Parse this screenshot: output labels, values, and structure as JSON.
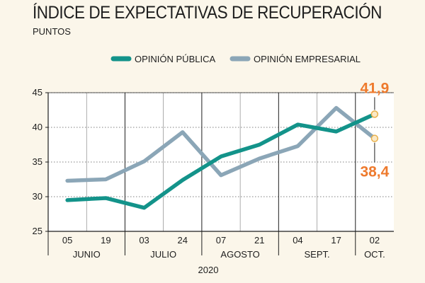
{
  "title": "ÍNDICE DE EXPECTATIVAS DE RECUPERACIÓN",
  "subtitle": "PUNTOS",
  "chart_data": {
    "type": "line",
    "x": [
      "05",
      "19",
      "03",
      "24",
      "07",
      "21",
      "04",
      "17",
      "02"
    ],
    "month_groups": [
      {
        "label": "JUNIO",
        "from": 0,
        "to": 1
      },
      {
        "label": "JULIO",
        "from": 2,
        "to": 3
      },
      {
        "label": "AGOSTO",
        "from": 4,
        "to": 5
      },
      {
        "label": "SEPT.",
        "from": 6,
        "to": 7
      },
      {
        "label": "OCT.",
        "from": 8,
        "to": 8
      }
    ],
    "year_label": "2020",
    "ylim": [
      25,
      45
    ],
    "yticks": [
      25,
      30,
      35,
      40,
      45
    ],
    "grid": true,
    "legend_position": "top",
    "series": [
      {
        "name": "OPINIÓN PÚBLICA",
        "color": "#13938a",
        "values": [
          29.5,
          29.8,
          28.4,
          32.4,
          35.8,
          37.5,
          40.4,
          39.4,
          41.9
        ],
        "end_label": "41,9"
      },
      {
        "name": "OPINIÓN EMPRESARIAL",
        "color": "#8ba6b7",
        "values": [
          32.3,
          32.5,
          35.1,
          39.3,
          33.1,
          35.5,
          37.3,
          42.8,
          38.4
        ],
        "end_label": "38,4"
      }
    ],
    "label_color": "#ee7a2d"
  }
}
